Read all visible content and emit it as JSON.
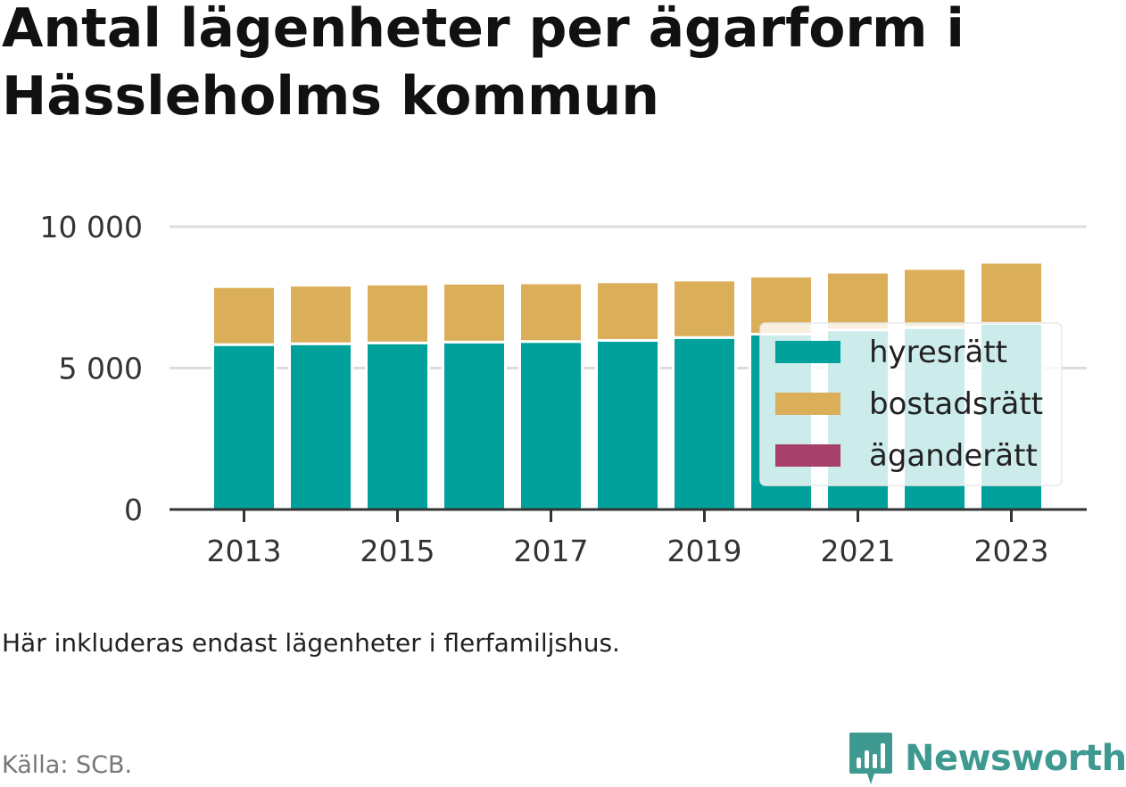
{
  "title": "Antal lägenheter per ägarform i Hässleholms kommun",
  "note": "Här inkluderas endast lägenheter i flerfamiljshus.",
  "source": "Källa: SCB.",
  "brand": {
    "name": "Newsworthy",
    "icon": "newsworthy-logo-icon",
    "color": "#3e9a91"
  },
  "chart_data": {
    "type": "bar",
    "stacked": true,
    "categories": [
      "2013",
      "2014",
      "2015",
      "2016",
      "2017",
      "2018",
      "2019",
      "2020",
      "2021",
      "2022",
      "2023"
    ],
    "x_tick_labels": [
      "2013",
      "2015",
      "2017",
      "2019",
      "2021",
      "2023"
    ],
    "y_tick_labels": [
      "0",
      "5 000",
      "10 000"
    ],
    "y_ticks": [
      0,
      5000,
      10000
    ],
    "ylim": [
      0,
      10000
    ],
    "grid": true,
    "legend_position": "right",
    "series": [
      {
        "name": "hyresrätt",
        "color": "#00a19a",
        "values": [
          5830,
          5860,
          5890,
          5920,
          5940,
          5980,
          6080,
          6200,
          6350,
          6430,
          6580
        ]
      },
      {
        "name": "bostadsrätt",
        "color": "#dbae5a",
        "values": [
          2050,
          2070,
          2080,
          2080,
          2070,
          2070,
          2030,
          2050,
          2040,
          2090,
          2160
        ]
      },
      {
        "name": "äganderätt",
        "color": "#a64068",
        "values": [
          0,
          0,
          0,
          0,
          0,
          0,
          0,
          0,
          0,
          0,
          0
        ]
      }
    ]
  }
}
